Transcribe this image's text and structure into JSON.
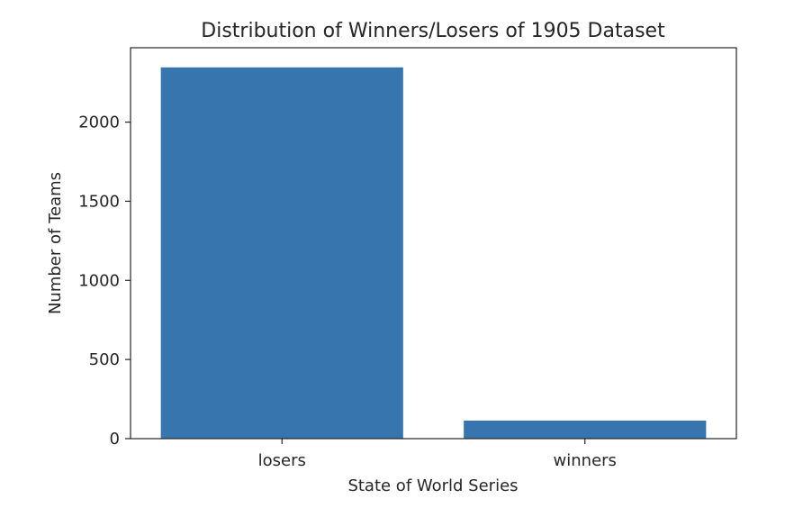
{
  "chart_data": {
    "type": "bar",
    "title": "Distribution of Winners/Losers of 1905 Dataset",
    "xlabel": "State of World Series",
    "ylabel": "Number of Teams",
    "categories": [
      "losers",
      "winners"
    ],
    "values": [
      2346,
      114
    ],
    "ylim": [
      0,
      2470
    ],
    "yticks": [
      0,
      500,
      1000,
      1500,
      2000
    ],
    "ytick_labels": [
      "0",
      "500",
      "1000",
      "1500",
      "2000"
    ],
    "bar_color": "#3775ae",
    "grid": false,
    "legend": "none"
  }
}
